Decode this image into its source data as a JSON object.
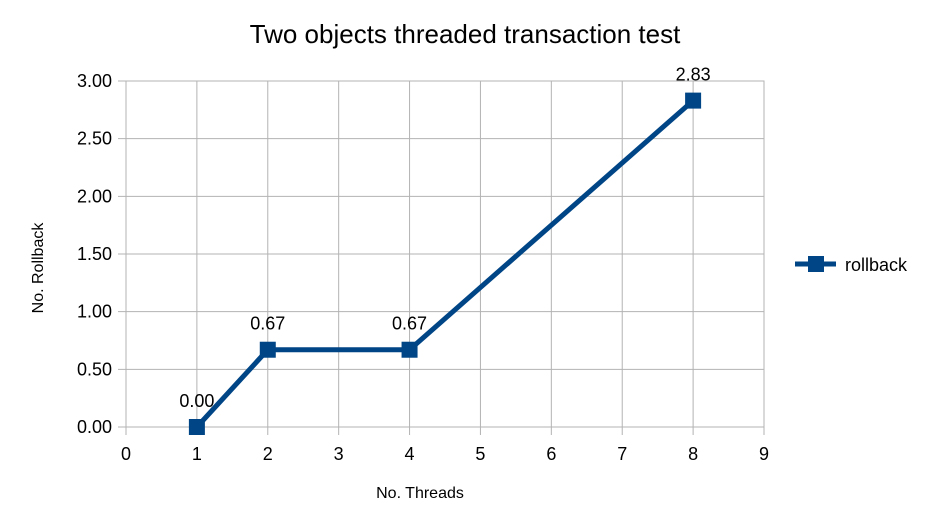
{
  "chart_data": {
    "type": "line",
    "title": "Two objects threaded transaction test",
    "xlabel": "No. Threads",
    "ylabel": "No. Rollback",
    "categories": [
      "0",
      "1",
      "2",
      "3",
      "4",
      "5",
      "6",
      "7",
      "8",
      "9"
    ],
    "series": [
      {
        "name": "rollback",
        "points": [
          {
            "x": "1",
            "y": 0.0,
            "label": "0.00"
          },
          {
            "x": "2",
            "y": 0.67,
            "label": "0.67"
          },
          {
            "x": "4",
            "y": 0.67,
            "label": "0.67"
          },
          {
            "x": "8",
            "y": 2.83,
            "label": "2.83"
          }
        ],
        "color": "#004586"
      }
    ],
    "y_ticks": [
      "0.00",
      "0.50",
      "1.00",
      "1.50",
      "2.00",
      "2.50",
      "3.00"
    ],
    "ylim": [
      0,
      3
    ],
    "grid": true,
    "legend": "right"
  }
}
